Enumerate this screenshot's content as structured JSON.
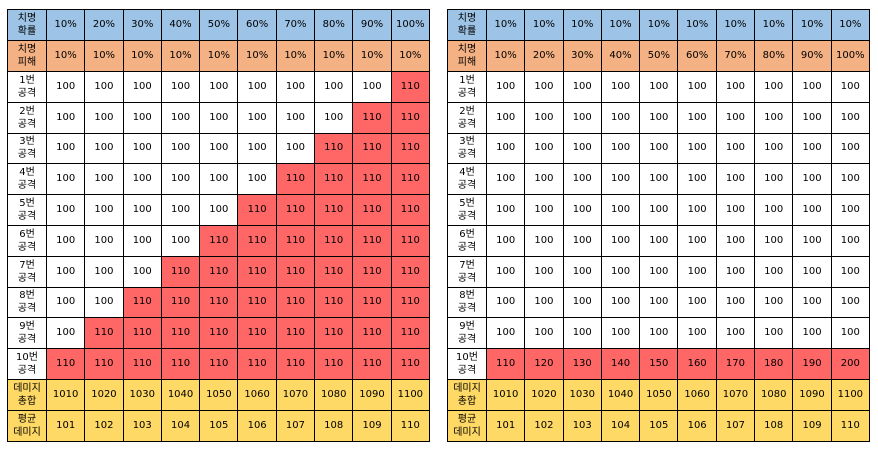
{
  "left": {
    "crit_rate_label": [
      "치명",
      "확률"
    ],
    "crit_rate": [
      "10%",
      "20%",
      "30%",
      "40%",
      "50%",
      "60%",
      "70%",
      "80%",
      "90%",
      "100%"
    ],
    "crit_dmg_label": [
      "치명",
      "피해"
    ],
    "crit_dmg": [
      "10%",
      "10%",
      "10%",
      "10%",
      "10%",
      "10%",
      "10%",
      "10%",
      "10%",
      "10%"
    ],
    "attack_rows": [
      {
        "label": [
          "1번",
          "공격"
        ],
        "cells": [
          "100",
          "100",
          "100",
          "100",
          "100",
          "100",
          "100",
          "100",
          "100",
          "110"
        ]
      },
      {
        "label": [
          "2번",
          "공격"
        ],
        "cells": [
          "100",
          "100",
          "100",
          "100",
          "100",
          "100",
          "100",
          "100",
          "110",
          "110"
        ]
      },
      {
        "label": [
          "3번",
          "공격"
        ],
        "cells": [
          "100",
          "100",
          "100",
          "100",
          "100",
          "100",
          "100",
          "110",
          "110",
          "110"
        ]
      },
      {
        "label": [
          "4번",
          "공격"
        ],
        "cells": [
          "100",
          "100",
          "100",
          "100",
          "100",
          "100",
          "110",
          "110",
          "110",
          "110"
        ]
      },
      {
        "label": [
          "5번",
          "공격"
        ],
        "cells": [
          "100",
          "100",
          "100",
          "100",
          "100",
          "110",
          "110",
          "110",
          "110",
          "110"
        ]
      },
      {
        "label": [
          "6번",
          "공격"
        ],
        "cells": [
          "100",
          "100",
          "100",
          "100",
          "110",
          "110",
          "110",
          "110",
          "110",
          "110"
        ]
      },
      {
        "label": [
          "7번",
          "공격"
        ],
        "cells": [
          "100",
          "100",
          "100",
          "110",
          "110",
          "110",
          "110",
          "110",
          "110",
          "110"
        ]
      },
      {
        "label": [
          "8번",
          "공격"
        ],
        "cells": [
          "100",
          "100",
          "110",
          "110",
          "110",
          "110",
          "110",
          "110",
          "110",
          "110"
        ]
      },
      {
        "label": [
          "9번",
          "공격"
        ],
        "cells": [
          "100",
          "110",
          "110",
          "110",
          "110",
          "110",
          "110",
          "110",
          "110",
          "110"
        ]
      },
      {
        "label": [
          "10번",
          "공격"
        ],
        "cells": [
          "110",
          "110",
          "110",
          "110",
          "110",
          "110",
          "110",
          "110",
          "110",
          "110"
        ]
      }
    ],
    "total_label": [
      "데미지",
      "총합"
    ],
    "totals": [
      "1010",
      "1020",
      "1030",
      "1040",
      "1050",
      "1060",
      "1070",
      "1080",
      "1090",
      "1100"
    ],
    "avg_label": [
      "평균",
      "데미지"
    ],
    "averages": [
      "101",
      "102",
      "103",
      "104",
      "105",
      "106",
      "107",
      "108",
      "109",
      "110"
    ]
  },
  "right": {
    "crit_rate_label": [
      "치명",
      "확률"
    ],
    "crit_rate": [
      "10%",
      "10%",
      "10%",
      "10%",
      "10%",
      "10%",
      "10%",
      "10%",
      "10%",
      "10%"
    ],
    "crit_dmg_label": [
      "치명",
      "피해"
    ],
    "crit_dmg": [
      "10%",
      "20%",
      "30%",
      "40%",
      "50%",
      "60%",
      "70%",
      "80%",
      "90%",
      "100%"
    ],
    "attack_rows": [
      {
        "label": [
          "1번",
          "공격"
        ],
        "cells": [
          "100",
          "100",
          "100",
          "100",
          "100",
          "100",
          "100",
          "100",
          "100",
          "100"
        ]
      },
      {
        "label": [
          "2번",
          "공격"
        ],
        "cells": [
          "100",
          "100",
          "100",
          "100",
          "100",
          "100",
          "100",
          "100",
          "100",
          "100"
        ]
      },
      {
        "label": [
          "3번",
          "공격"
        ],
        "cells": [
          "100",
          "100",
          "100",
          "100",
          "100",
          "100",
          "100",
          "100",
          "100",
          "100"
        ]
      },
      {
        "label": [
          "4번",
          "공격"
        ],
        "cells": [
          "100",
          "100",
          "100",
          "100",
          "100",
          "100",
          "100",
          "100",
          "100",
          "100"
        ]
      },
      {
        "label": [
          "5번",
          "공격"
        ],
        "cells": [
          "100",
          "100",
          "100",
          "100",
          "100",
          "100",
          "100",
          "100",
          "100",
          "100"
        ]
      },
      {
        "label": [
          "6번",
          "공격"
        ],
        "cells": [
          "100",
          "100",
          "100",
          "100",
          "100",
          "100",
          "100",
          "100",
          "100",
          "100"
        ]
      },
      {
        "label": [
          "7번",
          "공격"
        ],
        "cells": [
          "100",
          "100",
          "100",
          "100",
          "100",
          "100",
          "100",
          "100",
          "100",
          "100"
        ]
      },
      {
        "label": [
          "8번",
          "공격"
        ],
        "cells": [
          "100",
          "100",
          "100",
          "100",
          "100",
          "100",
          "100",
          "100",
          "100",
          "100"
        ]
      },
      {
        "label": [
          "9번",
          "공격"
        ],
        "cells": [
          "100",
          "100",
          "100",
          "100",
          "100",
          "100",
          "100",
          "100",
          "100",
          "100"
        ]
      },
      {
        "label": [
          "10번",
          "공격"
        ],
        "cells": [
          "110",
          "120",
          "130",
          "140",
          "150",
          "160",
          "170",
          "180",
          "190",
          "200"
        ]
      }
    ],
    "total_label": [
      "데미지",
      "총합"
    ],
    "totals": [
      "1010",
      "1020",
      "1030",
      "1040",
      "1050",
      "1060",
      "1070",
      "1080",
      "1090",
      "1100"
    ],
    "avg_label": [
      "평균",
      "데미지"
    ],
    "averages": [
      "101",
      "102",
      "103",
      "104",
      "105",
      "106",
      "107",
      "108",
      "109",
      "110"
    ]
  },
  "colors": {
    "crit_rate_row": "#9dc3e6",
    "crit_dmg_row": "#f4b183",
    "summary_rows": "#ffd966",
    "crit_hit_cell": "#ff6666",
    "normal_cell": "#ffffff"
  }
}
